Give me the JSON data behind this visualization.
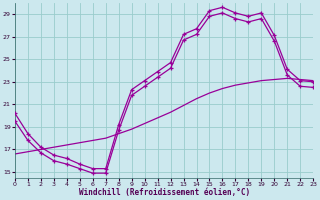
{
  "xlabel": "Windchill (Refroidissement éolien,°C)",
  "bg_color": "#cce8ee",
  "line_color": "#990099",
  "grid_color": "#99cccc",
  "xlim": [
    0,
    23
  ],
  "ylim": [
    14.5,
    30.0
  ],
  "yticks": [
    15,
    17,
    19,
    21,
    23,
    25,
    27,
    29
  ],
  "xticks": [
    0,
    1,
    2,
    3,
    4,
    5,
    6,
    7,
    8,
    9,
    10,
    11,
    12,
    13,
    14,
    15,
    16,
    17,
    18,
    19,
    20,
    21,
    22,
    23
  ],
  "curve1_x": [
    0,
    1,
    2,
    3,
    4,
    5,
    6,
    7,
    8,
    9,
    10,
    11,
    12,
    13,
    14,
    15,
    16,
    17,
    18,
    19,
    20,
    21,
    22,
    23
  ],
  "curve1_y": [
    20.2,
    18.4,
    17.2,
    16.5,
    16.2,
    15.7,
    15.3,
    15.3,
    19.2,
    22.3,
    23.1,
    23.9,
    24.7,
    27.2,
    27.7,
    29.3,
    29.6,
    29.1,
    28.8,
    29.1,
    27.1,
    24.1,
    23.1,
    23.0
  ],
  "curve2_x": [
    0,
    1,
    2,
    3,
    4,
    5,
    6,
    7,
    8,
    9,
    10,
    11,
    12,
    13,
    14,
    15,
    16,
    17,
    18,
    19,
    20,
    21,
    22,
    23
  ],
  "curve2_y": [
    19.5,
    17.8,
    16.7,
    16.0,
    15.7,
    15.3,
    14.9,
    14.9,
    18.7,
    21.8,
    22.6,
    23.4,
    24.2,
    26.7,
    27.2,
    28.8,
    29.1,
    28.6,
    28.3,
    28.6,
    26.6,
    23.6,
    22.6,
    22.5
  ],
  "curve3_x": [
    0,
    1,
    2,
    3,
    4,
    5,
    6,
    7,
    8,
    9,
    10,
    11,
    12,
    13,
    14,
    15,
    16,
    17,
    18,
    19,
    20,
    21,
    22,
    23
  ],
  "curve3_y": [
    16.6,
    16.8,
    17.0,
    17.2,
    17.4,
    17.6,
    17.8,
    18.0,
    18.4,
    18.8,
    19.3,
    19.8,
    20.3,
    20.9,
    21.5,
    22.0,
    22.4,
    22.7,
    22.9,
    23.1,
    23.2,
    23.3,
    23.2,
    23.1
  ]
}
